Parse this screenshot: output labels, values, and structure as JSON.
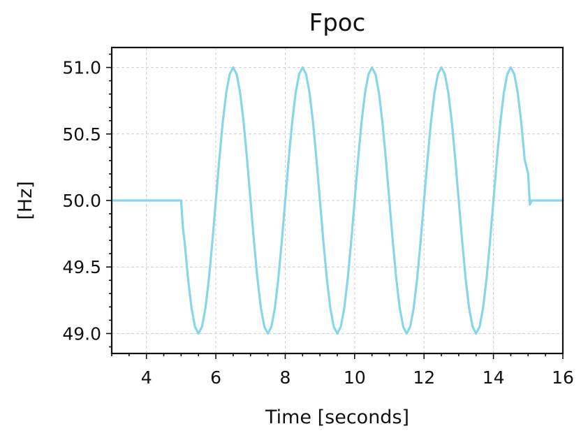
{
  "chart_data": {
    "type": "line",
    "title": "Fpoc",
    "xlabel": "Time [seconds]",
    "ylabel": "[Hz]",
    "xlim": [
      3,
      16
    ],
    "ylim": [
      48.85,
      51.15
    ],
    "x_ticks": [
      4,
      6,
      8,
      10,
      12,
      14,
      16
    ],
    "x_tick_labels": [
      "4",
      "6",
      "8",
      "10",
      "12",
      "14",
      "16"
    ],
    "y_ticks": [
      49.0,
      49.5,
      50.0,
      50.5,
      51.0
    ],
    "y_tick_labels": [
      "49.0",
      "49.5",
      "50.0",
      "50.5",
      "51.0"
    ],
    "grid": true,
    "series": [
      {
        "color": "#87d6e9",
        "x": [
          3.0,
          5.0,
          5.05,
          5.1,
          5.2,
          5.3,
          5.4,
          5.5,
          5.6,
          5.7,
          5.8,
          5.9,
          6.0,
          6.1,
          6.2,
          6.3,
          6.4,
          6.5,
          6.6,
          6.7,
          6.8,
          6.9,
          7.0,
          7.1,
          7.2,
          7.3,
          7.4,
          7.5,
          7.6,
          7.7,
          7.8,
          7.9,
          8.0,
          8.1,
          8.2,
          8.3,
          8.4,
          8.5,
          8.6,
          8.7,
          8.8,
          8.9,
          9.0,
          9.1,
          9.2,
          9.3,
          9.4,
          9.5,
          9.6,
          9.7,
          9.8,
          9.9,
          10.0,
          10.1,
          10.2,
          10.3,
          10.4,
          10.5,
          10.6,
          10.7,
          10.8,
          10.9,
          11.0,
          11.1,
          11.2,
          11.3,
          11.4,
          11.5,
          11.6,
          11.7,
          11.8,
          11.9,
          12.0,
          12.1,
          12.2,
          12.3,
          12.4,
          12.5,
          12.6,
          12.7,
          12.8,
          12.9,
          13.0,
          13.1,
          13.2,
          13.3,
          13.4,
          13.5,
          13.6,
          13.7,
          13.8,
          13.9,
          14.0,
          14.1,
          14.2,
          14.3,
          14.4,
          14.5,
          14.6,
          14.7,
          14.8,
          14.9,
          15.0,
          15.05,
          15.1,
          15.2,
          16.0
        ],
        "y": [
          50.0,
          50.0,
          49.8,
          49.69,
          49.41,
          49.19,
          49.05,
          49.0,
          49.05,
          49.19,
          49.41,
          49.69,
          50.0,
          50.31,
          50.59,
          50.81,
          50.95,
          51.0,
          50.95,
          50.81,
          50.59,
          50.31,
          50.0,
          49.69,
          49.41,
          49.19,
          49.05,
          49.0,
          49.05,
          49.19,
          49.41,
          49.69,
          50.0,
          50.31,
          50.59,
          50.81,
          50.95,
          51.0,
          50.95,
          50.81,
          50.59,
          50.31,
          50.0,
          49.69,
          49.41,
          49.19,
          49.05,
          49.0,
          49.05,
          49.19,
          49.41,
          49.69,
          50.0,
          50.31,
          50.59,
          50.81,
          50.95,
          51.0,
          50.95,
          50.81,
          50.59,
          50.31,
          50.0,
          49.69,
          49.41,
          49.19,
          49.05,
          49.0,
          49.05,
          49.19,
          49.41,
          49.69,
          50.0,
          50.31,
          50.59,
          50.81,
          50.95,
          51.0,
          50.95,
          50.81,
          50.59,
          50.31,
          50.0,
          49.69,
          49.41,
          49.19,
          49.05,
          49.0,
          49.05,
          49.19,
          49.41,
          49.69,
          50.0,
          50.31,
          50.59,
          50.81,
          50.95,
          51.0,
          50.95,
          50.81,
          50.59,
          50.31,
          50.2,
          49.97,
          50.0,
          50.0,
          50.0
        ]
      }
    ]
  }
}
